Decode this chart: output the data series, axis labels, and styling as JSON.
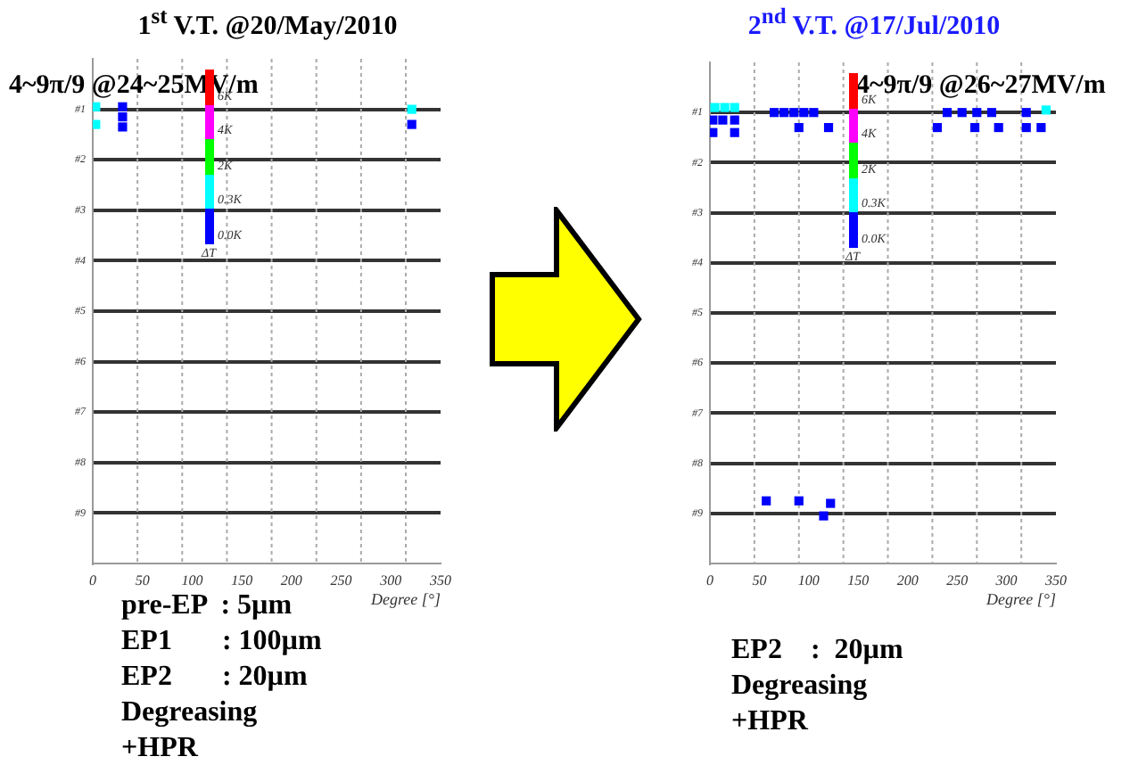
{
  "chart_data": [
    {
      "type": "scatter",
      "title": "1$^{st}$ V.T. @20/May/2010",
      "xlabel": "Degree [°]",
      "annotations": [
        "4~9π/9 @24~25MV/m",
        "6K",
        "4K",
        "2K",
        "0.3K",
        "0.0K",
        "ΔT",
        "pre-EP  : 5µm",
        "EP1       : 100µm",
        "EP2       : 20µm",
        "Degreasing",
        "+HPR"
      ],
      "series": [
        {
          "color": "#00ffff",
          "x": [
            3,
            3,
            321
          ],
          "values": [
            0.95,
            1.3,
            1.0
          ]
        },
        {
          "color": "#0000ff",
          "x": [
            30,
            30,
            30,
            321
          ],
          "values": [
            0.95,
            1.15,
            1.35,
            1.3
          ]
        }
      ],
      "xlim": [
        0,
        350
      ],
      "xticks": [
        0,
        50,
        100,
        150,
        200,
        250,
        300,
        350
      ],
      "ylim": [
        10,
        0
      ],
      "yticks": [
        {
          "value": 1,
          "label": "#1"
        },
        {
          "value": 2,
          "label": "#2"
        },
        {
          "value": 3,
          "label": "#3"
        },
        {
          "value": 4,
          "label": "#4"
        },
        {
          "value": 5,
          "label": "#5"
        },
        {
          "value": 6,
          "label": "#6"
        },
        {
          "value": 7,
          "label": "#7"
        },
        {
          "value": 8,
          "label": "#8"
        },
        {
          "value": 9,
          "label": "#9"
        }
      ],
      "ref_lines": [
        {
          "axis": "x",
          "value": 45,
          "color": "#aaaaaa",
          "line_style": "dotted"
        },
        {
          "axis": "x",
          "value": 90,
          "color": "#aaaaaa",
          "line_style": "dotted"
        },
        {
          "axis": "x",
          "value": 135,
          "color": "#aaaaaa",
          "line_style": "dotted"
        },
        {
          "axis": "x",
          "value": 180,
          "color": "#aaaaaa",
          "line_style": "dotted"
        },
        {
          "axis": "x",
          "value": 225,
          "color": "#aaaaaa",
          "line_style": "dotted"
        },
        {
          "axis": "x",
          "value": 270,
          "color": "#aaaaaa",
          "line_style": "dotted"
        },
        {
          "axis": "x",
          "value": 315,
          "color": "#aaaaaa",
          "line_style": "dotted"
        }
      ],
      "grid": "y",
      "marker": "square"
    },
    {
      "type": "scatter",
      "title": "2$^{nd}$ V.T. @17/Jul/2010",
      "xlabel": "Degree [°]",
      "annotations": [
        "4~9π/9 @26~27MV/m",
        "6K",
        "4K",
        "2K",
        "0.3K",
        "0.0K",
        "ΔT",
        "EP2    :  20µm",
        "Degreasing",
        "+HPR"
      ],
      "series": [
        {
          "color": "#00ffff",
          "x": [
            5,
            15,
            25,
            340
          ],
          "values": [
            0.9,
            0.9,
            0.9,
            0.95
          ]
        },
        {
          "color": "#0000ff",
          "x": [
            3,
            3,
            13,
            25,
            25,
            65,
            75,
            85,
            95,
            105,
            90,
            120,
            240,
            255,
            270,
            285,
            230,
            268,
            292,
            320,
            320,
            335,
            57,
            90,
            115,
            122
          ],
          "values": [
            1.15,
            1.4,
            1.15,
            1.15,
            1.4,
            1.0,
            1.0,
            1.0,
            1.0,
            1.0,
            1.3,
            1.3,
            1.0,
            1.0,
            1.0,
            1.0,
            1.3,
            1.3,
            1.3,
            1.0,
            1.3,
            1.3,
            8.75,
            8.75,
            9.05,
            8.8
          ]
        }
      ],
      "xlim": [
        0,
        350
      ],
      "xticks": [
        0,
        50,
        100,
        150,
        200,
        250,
        300,
        350
      ],
      "ylim": [
        10,
        0
      ],
      "yticks": [
        {
          "value": 1,
          "label": "#1"
        },
        {
          "value": 2,
          "label": "#2"
        },
        {
          "value": 3,
          "label": "#3"
        },
        {
          "value": 4,
          "label": "#4"
        },
        {
          "value": 5,
          "label": "#5"
        },
        {
          "value": 6,
          "label": "#6"
        },
        {
          "value": 7,
          "label": "#7"
        },
        {
          "value": 8,
          "label": "#8"
        },
        {
          "value": 9,
          "label": "#9"
        }
      ],
      "ref_lines": [
        {
          "axis": "x",
          "value": 45,
          "color": "#aaaaaa",
          "line_style": "dotted"
        },
        {
          "axis": "x",
          "value": 90,
          "color": "#aaaaaa",
          "line_style": "dotted"
        },
        {
          "axis": "x",
          "value": 135,
          "color": "#aaaaaa",
          "line_style": "dotted"
        },
        {
          "axis": "x",
          "value": 180,
          "color": "#aaaaaa",
          "line_style": "dotted"
        },
        {
          "axis": "x",
          "value": 225,
          "color": "#aaaaaa",
          "line_style": "dotted"
        },
        {
          "axis": "x",
          "value": 270,
          "color": "#aaaaaa",
          "line_style": "dotted"
        },
        {
          "axis": "x",
          "value": 315,
          "color": "#aaaaaa",
          "line_style": "dotted"
        }
      ],
      "grid": "y",
      "marker": "square"
    }
  ]
}
